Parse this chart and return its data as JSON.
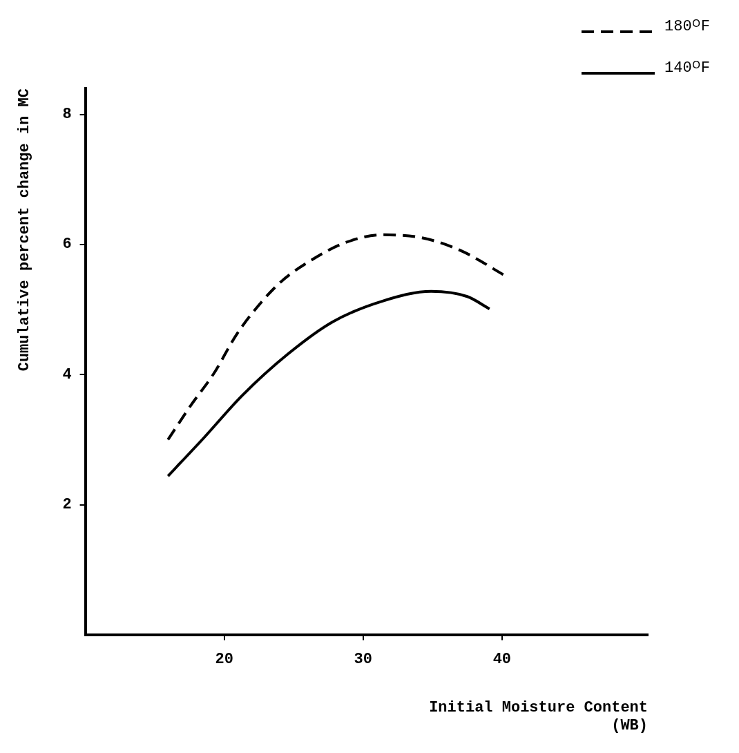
{
  "chart_data": {
    "type": "line",
    "xlabel": "Initial Moisture Content\n(WB)",
    "ylabel": "Cumulative percent change in MC",
    "xlim": [
      10,
      50.5
    ],
    "xticks": [
      20,
      30,
      40
    ],
    "ylim": [
      0,
      8.4
    ],
    "yticks": [
      2,
      4,
      6,
      8
    ],
    "grid": false,
    "legend": "top right",
    "marker": "none",
    "series": [
      {
        "name": "180ᴼF",
        "color": "#000000",
        "line_style": "dashed",
        "x": [
          15.95,
          17.67,
          19.2,
          20.9,
          22.5,
          24.15,
          26.2,
          28.6,
          31.4,
          34.3,
          37.1,
          40.15
        ],
        "values": [
          3.0,
          3.55,
          4.0,
          4.62,
          5.07,
          5.44,
          5.75,
          6.02,
          6.15,
          6.1,
          5.9,
          5.53
        ]
      },
      {
        "name": "140ᴼF",
        "color": "#000000",
        "line_style": "solid",
        "x": [
          15.95,
          18.5,
          21.3,
          24.55,
          27.8,
          31.4,
          34.9,
          37.5,
          39.1
        ],
        "values": [
          2.44,
          3.02,
          3.68,
          4.31,
          4.81,
          5.13,
          5.28,
          5.2,
          5.01
        ]
      }
    ]
  }
}
